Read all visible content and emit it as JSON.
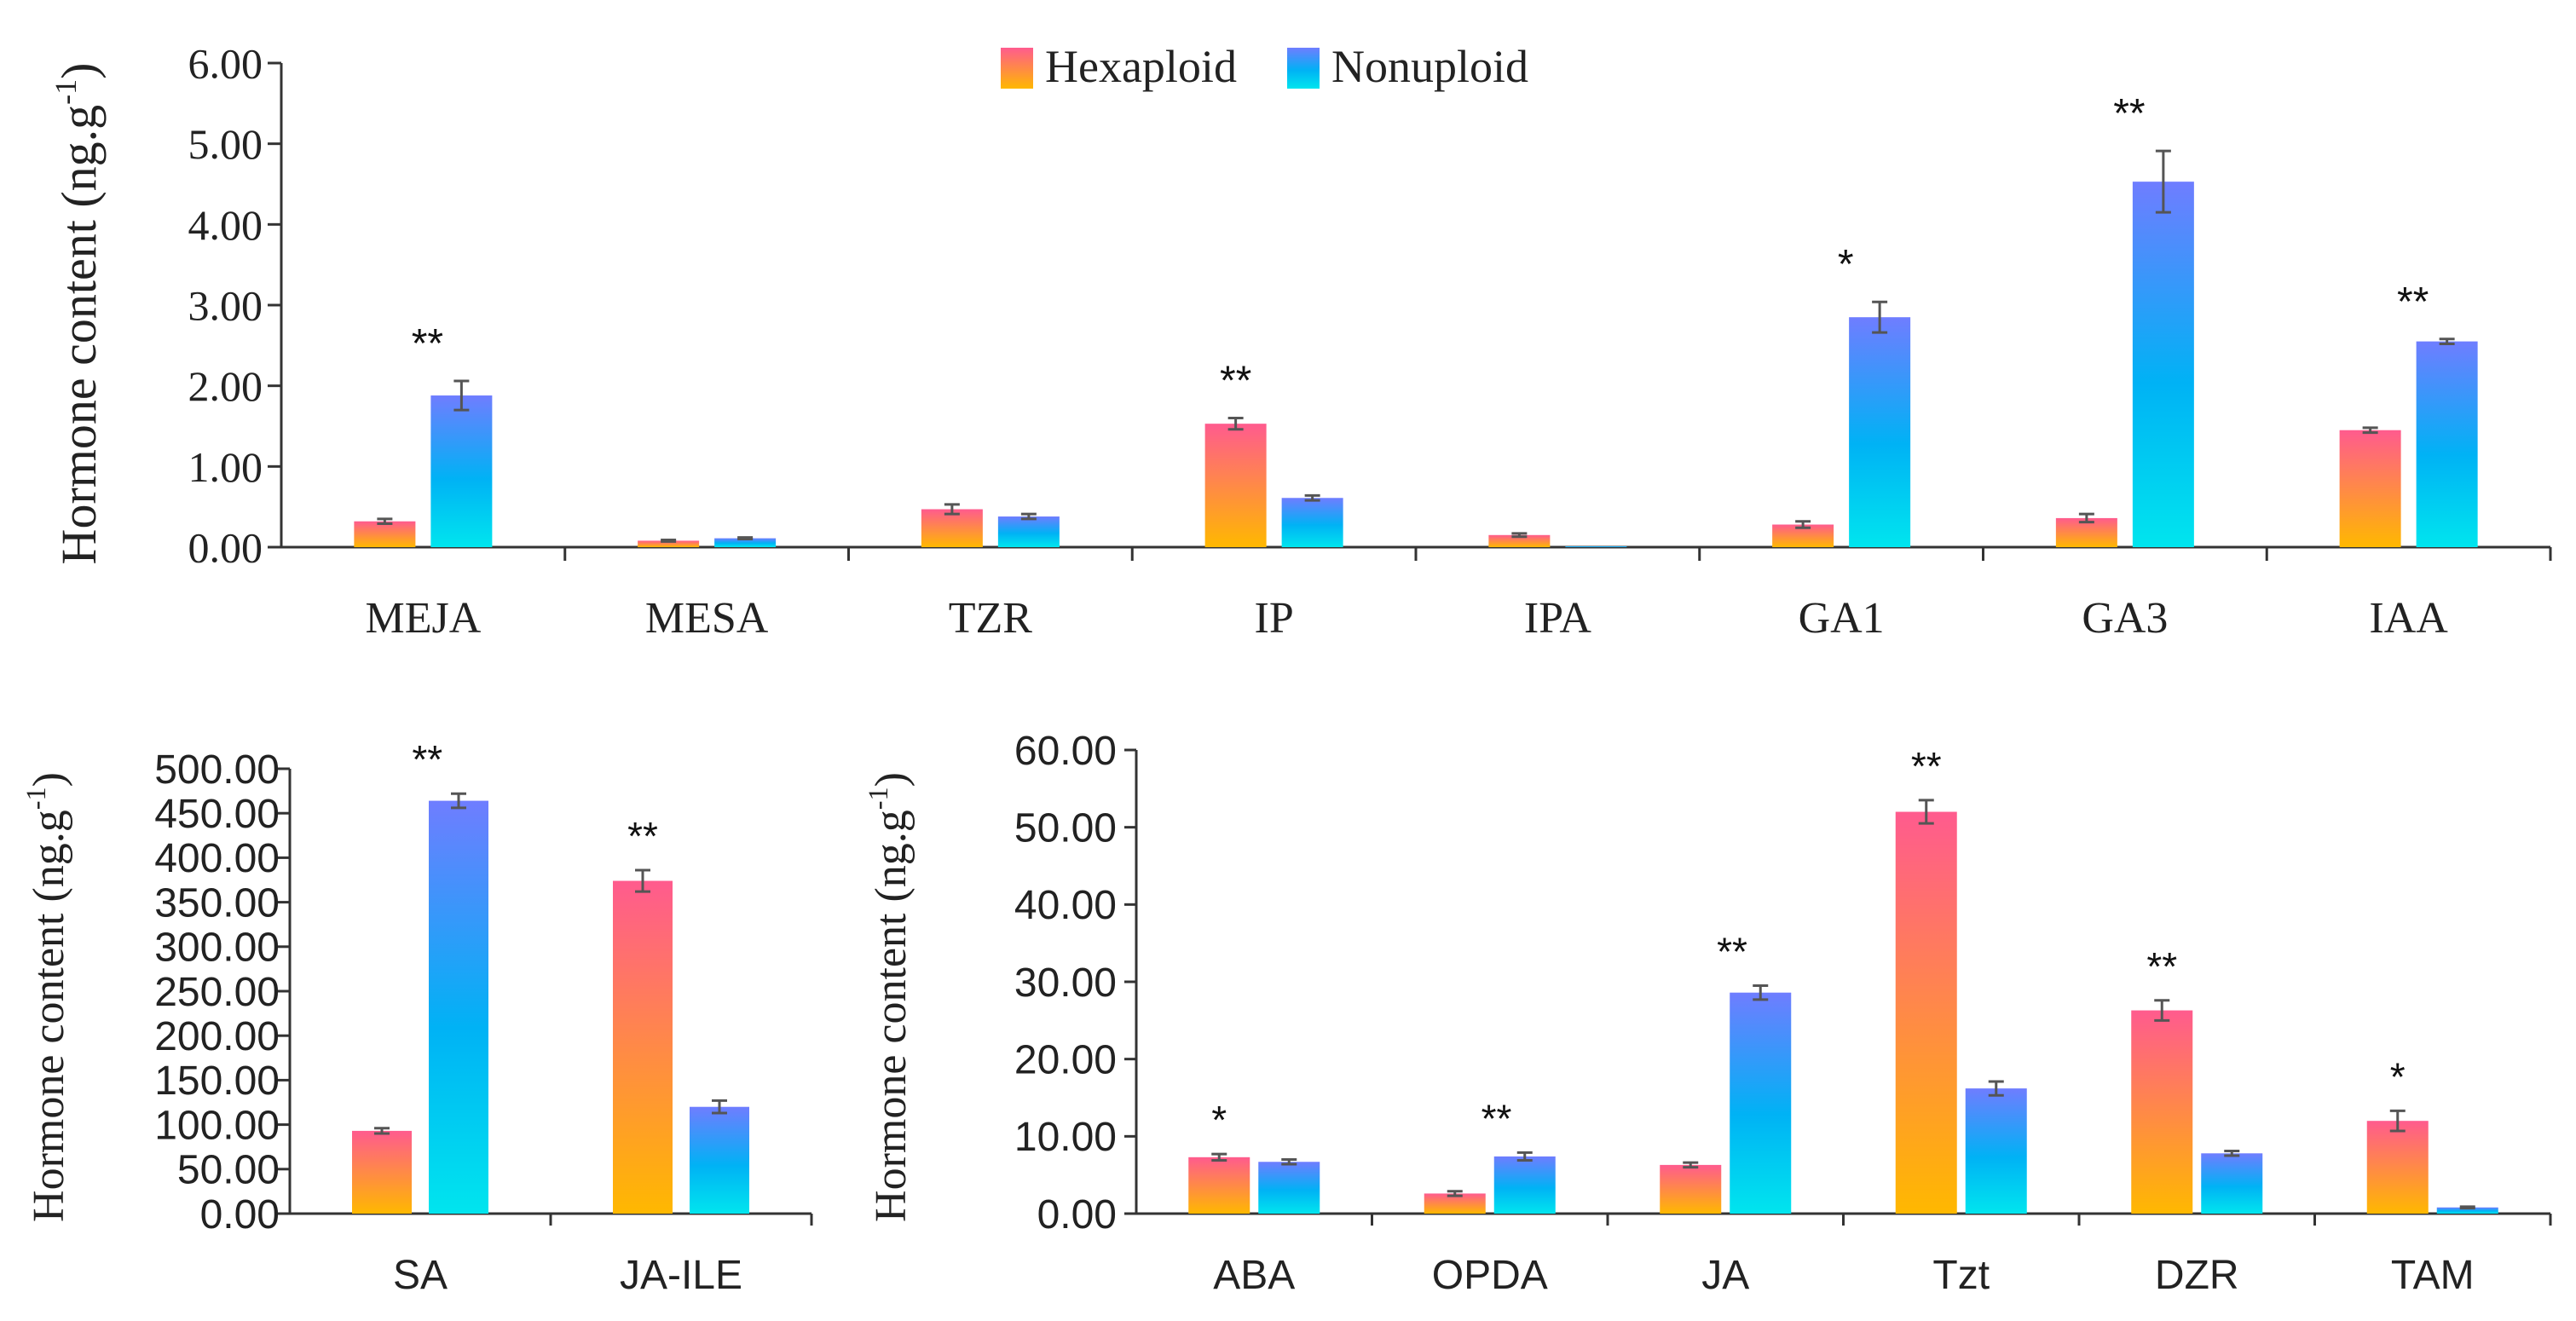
{
  "legend": {
    "items": [
      {
        "label": "Hexaploid",
        "gradient": [
          "#ff5b8e",
          "#ffb800"
        ]
      },
      {
        "label": "Nonuploid",
        "gradient": [
          "#6f7dff",
          "#00e5ee"
        ]
      }
    ]
  },
  "series_names": [
    "Hexaploid",
    "Nonuploid"
  ],
  "chart_data": [
    {
      "type": "bar",
      "ylabel": "Hormone content (ng.g",
      "ylabel_sup": "-1",
      "ylabel_close": ")",
      "ylim": [
        0,
        6
      ],
      "yticks": [
        0,
        1,
        2,
        3,
        4,
        5,
        6
      ],
      "ytick_labels": [
        "0.00",
        "1.00",
        "2.00",
        "3.00",
        "4.00",
        "5.00",
        "6.00"
      ],
      "categories": [
        "MEJA",
        "MESA",
        "TZR",
        "IP",
        "IPA",
        "GA1",
        "GA3",
        "IAA"
      ],
      "series": [
        {
          "name": "Hexaploid",
          "values": [
            0.32,
            0.08,
            0.47,
            1.53,
            0.15,
            0.28,
            0.36,
            1.45
          ],
          "errors": [
            0.03,
            0.01,
            0.06,
            0.07,
            0.02,
            0.04,
            0.05,
            0.03
          ]
        },
        {
          "name": "Nonuploid",
          "values": [
            1.88,
            0.11,
            0.38,
            0.61,
            0.01,
            2.85,
            4.53,
            2.55
          ],
          "errors": [
            0.18,
            0.01,
            0.03,
            0.03,
            0.0,
            0.19,
            0.38,
            0.03
          ]
        }
      ],
      "annotations": [
        "**",
        "",
        "",
        "**",
        "",
        "*",
        "**",
        "**"
      ]
    },
    {
      "type": "bar",
      "ylabel": "Hormone content (ng.g",
      "ylabel_sup": "-1",
      "ylabel_close": ")",
      "ylim": [
        0,
        500
      ],
      "yticks": [
        0,
        50,
        100,
        150,
        200,
        250,
        300,
        350,
        400,
        450,
        500
      ],
      "ytick_labels": [
        "0.00",
        "50.00",
        "100.00",
        "150.00",
        "200.00",
        "250.00",
        "300.00",
        "350.00",
        "400.00",
        "450.00",
        "500.00"
      ],
      "categories": [
        "SA",
        "JA-ILE"
      ],
      "series": [
        {
          "name": "Hexaploid",
          "values": [
            93,
            374
          ],
          "errors": [
            3,
            12
          ]
        },
        {
          "name": "Nonuploid",
          "values": [
            464,
            120
          ],
          "errors": [
            8,
            7
          ]
        }
      ],
      "annotations": [
        "**",
        "**"
      ]
    },
    {
      "type": "bar",
      "ylabel": "Hormone content (ng.g",
      "ylabel_sup": "-1",
      "ylabel_close": ")",
      "ylim": [
        0,
        60
      ],
      "yticks": [
        0,
        10,
        20,
        30,
        40,
        50,
        60
      ],
      "ytick_labels": [
        "0.00",
        "10.00",
        "20.00",
        "30.00",
        "40.00",
        "50.00",
        "60.00"
      ],
      "categories": [
        "ABA",
        "OPDA",
        "JA",
        "Tzt",
        "DZR",
        "TAM"
      ],
      "series": [
        {
          "name": "Hexaploid",
          "values": [
            7.3,
            2.6,
            6.3,
            52.0,
            26.3,
            12.0
          ],
          "errors": [
            0.4,
            0.3,
            0.3,
            1.5,
            1.3,
            1.3
          ]
        },
        {
          "name": "Nonuploid",
          "values": [
            6.7,
            7.4,
            28.6,
            16.2,
            7.8,
            0.8
          ],
          "errors": [
            0.3,
            0.5,
            0.9,
            0.9,
            0.3,
            0.1
          ]
        }
      ],
      "annotations": [
        "*",
        "**",
        "**",
        "**",
        "**",
        "*"
      ]
    }
  ]
}
